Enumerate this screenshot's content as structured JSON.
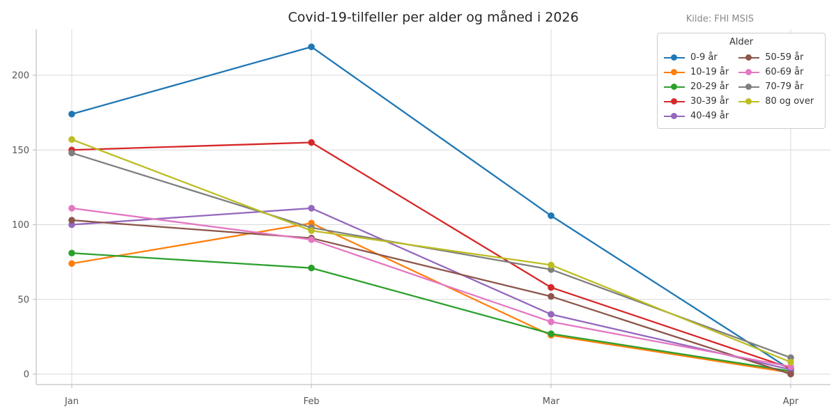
{
  "title": "Covid-19-tilfeller per alder og måned i 2026",
  "source_note": "Kilde: FHI MSIS",
  "legend": {
    "title": "Alder",
    "position": "upper right",
    "columns": 2
  },
  "chart_data": {
    "type": "line",
    "title": "Covid-19-tilfeller per alder og måned i 2026",
    "xlabel": "",
    "ylabel": "",
    "x": [
      "Jan",
      "Feb",
      "Mar",
      "Apr"
    ],
    "y_ticks": [
      0,
      50,
      100,
      150,
      200
    ],
    "ylim": [
      -7,
      231
    ],
    "grid": true,
    "legend_title": "Alder",
    "legend_position": "upper right",
    "series": [
      {
        "name": "0-9 år",
        "color": "#1f77b4",
        "values": [
          174,
          219,
          106,
          3
        ]
      },
      {
        "name": "10-19 år",
        "color": "#ff7f0e",
        "values": [
          74,
          101,
          26,
          1
        ]
      },
      {
        "name": "20-29 år",
        "color": "#2ca02c",
        "values": [
          81,
          71,
          27,
          2
        ]
      },
      {
        "name": "30-39 år",
        "color": "#d62728",
        "values": [
          150,
          155,
          58,
          4
        ]
      },
      {
        "name": "40-49 år",
        "color": "#9467bd",
        "values": [
          100,
          111,
          40,
          3
        ]
      },
      {
        "name": "50-59 år",
        "color": "#8c564b",
        "values": [
          103,
          91,
          52,
          0
        ]
      },
      {
        "name": "60-69 år",
        "color": "#e377c2",
        "values": [
          111,
          90,
          35,
          5
        ]
      },
      {
        "name": "70-79 år",
        "color": "#7f7f7f",
        "values": [
          148,
          98,
          70,
          11
        ]
      },
      {
        "name": "80 og over",
        "color": "#bcbd22",
        "values": [
          157,
          96,
          73,
          8
        ]
      }
    ],
    "axis_color": "#c0c0c0",
    "grid_color": "#d9d9d9",
    "tick_label_color": "#555555"
  }
}
